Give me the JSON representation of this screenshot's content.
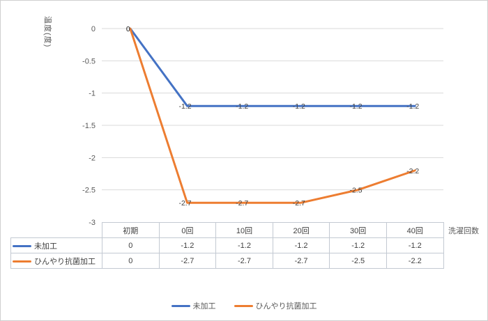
{
  "chart_data": {
    "type": "line",
    "categories": [
      "初期",
      "0回",
      "10回",
      "20回",
      "30回",
      "40回"
    ],
    "series": [
      {
        "name": "未加工",
        "color": "#4472C4",
        "values": [
          0,
          -1.2,
          -1.2,
          -1.2,
          -1.2,
          -1.2
        ],
        "point_labels": [
          "0",
          "-1.2",
          "-1.2",
          "-1.2",
          "-1.2",
          "-1.2"
        ]
      },
      {
        "name": "ひんやり抗菌加工",
        "color": "#ED7D31",
        "values": [
          0,
          -2.7,
          -2.7,
          -2.7,
          -2.5,
          -2.2
        ],
        "point_labels": [
          "0",
          "-2.7",
          "-2.7",
          "-2.7",
          "-2.5",
          "-2.2"
        ]
      }
    ],
    "title": "",
    "ylabel": "温度(度)",
    "xlabel": "洗濯回数",
    "ylim": [
      -3,
      0
    ],
    "yticks": [
      0,
      -0.5,
      -1,
      -1.5,
      -2,
      -2.5,
      -3
    ],
    "ytick_labels": [
      "0",
      "-0.5",
      "-1",
      "-1.5",
      "-2",
      "-2.5",
      "-3"
    ],
    "grid": true,
    "legend_position": "bottom",
    "data_table_shown": true
  },
  "table": {
    "column_headers": [
      "初期",
      "0回",
      "10回",
      "20回",
      "30回",
      "40回"
    ],
    "rows": [
      {
        "label": "未加工",
        "color": "#4472C4",
        "values": [
          "0",
          "-1.2",
          "-1.2",
          "-1.2",
          "-1.2",
          "-1.2"
        ]
      },
      {
        "label": "ひんやり抗菌加工",
        "color": "#ED7D31",
        "values": [
          "0",
          "-2.7",
          "-2.7",
          "-2.7",
          "-2.5",
          "-2.2"
        ]
      }
    ]
  },
  "legend": {
    "items": [
      {
        "label": "未加工",
        "color": "#4472C4"
      },
      {
        "label": "ひんやり抗菌加工",
        "color": "#ED7D31"
      }
    ]
  },
  "colors": {
    "series1": "#4472C4",
    "series2": "#ED7D31",
    "gridline": "#D9D9D9",
    "axis_text": "#595959",
    "data_label": "#404040",
    "table_border": "#C3C9D2"
  }
}
